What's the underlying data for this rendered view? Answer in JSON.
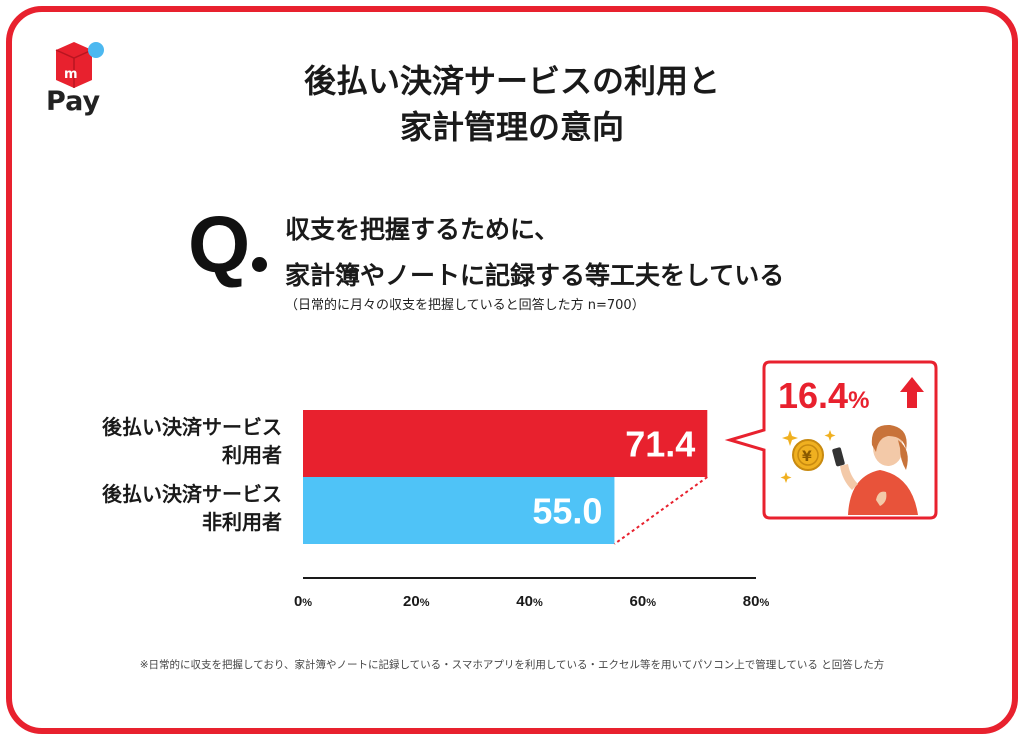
{
  "logo": {
    "wordmark": "Pay",
    "brand_color": "#e8212e",
    "dot_color": "#4cb8f0"
  },
  "title": {
    "line1": "後払い決済サービスの利用と",
    "line2": "家計管理の意向"
  },
  "question": {
    "mark": "Q",
    "line1": "収支を把握するために、",
    "line2": "家計簿やノートに記録する等工夫をしている",
    "note": "（日常的に月々の収支を把握していると回答した方 n=700）"
  },
  "chart_data": {
    "type": "bar",
    "orientation": "horizontal",
    "categories": [
      [
        "後払い決済サービス",
        "利用者"
      ],
      [
        "後払い決済サービス",
        "非利用者"
      ]
    ],
    "values": [
      71.4,
      55.0
    ],
    "value_labels": [
      "71.4",
      "55.0"
    ],
    "colors": [
      "#e8212e",
      "#4fc3f7"
    ],
    "xlim": [
      0,
      80
    ],
    "ticks": [
      0,
      20,
      40,
      60,
      80
    ],
    "tick_unit": "%",
    "grid": false
  },
  "callout": {
    "value": "16.4",
    "unit": "%",
    "arrow": "up-arrow-icon",
    "color": "#e8212e"
  },
  "footnote": "※日常的に収支を把握しており、家計簿やノートに記録している・スマホアプリを利用している・エクセル等を用いてパソコン上で管理している と回答した方"
}
